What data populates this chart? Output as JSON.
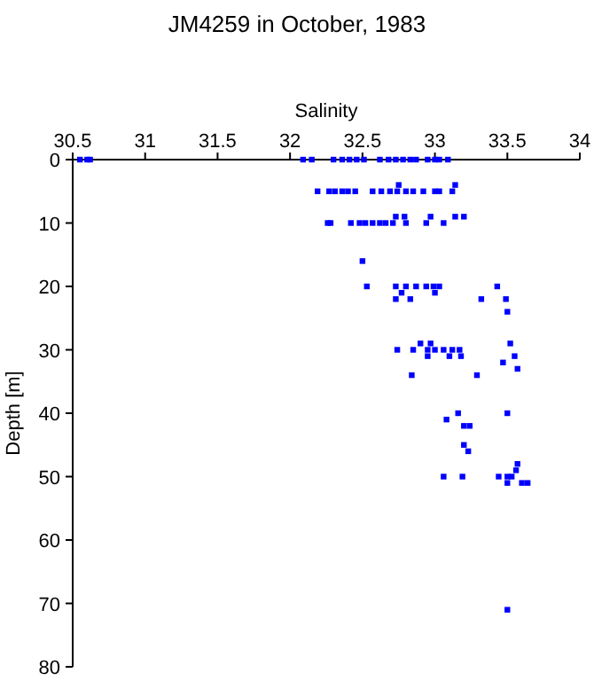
{
  "chart_data": {
    "type": "scatter",
    "title": "JM4259 in October, 1983",
    "xlabel": "Salinity",
    "ylabel": "Depth [m]",
    "xlim": [
      30.5,
      34
    ],
    "xticks": [
      30.5,
      31,
      31.5,
      32,
      32.5,
      33,
      33.5,
      34
    ],
    "ylim": [
      80,
      0
    ],
    "yticks": [
      0,
      10,
      20,
      30,
      40,
      50,
      60,
      70,
      80
    ],
    "marker": "square",
    "series": [
      {
        "color": "#0000ff",
        "x": [
          30.55,
          30.6,
          30.62,
          32.09,
          32.15,
          32.3,
          32.36,
          32.41,
          32.46,
          32.51,
          32.62,
          32.68,
          32.73,
          32.78,
          32.83,
          32.87,
          32.95,
          33.0,
          33.03,
          33.09,
          32.19,
          32.27,
          32.31,
          32.36,
          32.4,
          32.45,
          32.57,
          32.63,
          32.69,
          32.74,
          32.8,
          32.85,
          32.92,
          33.0,
          33.03,
          33.12,
          32.75,
          33.14,
          32.73,
          32.79,
          32.97,
          33.14,
          33.2,
          32.26,
          32.28,
          32.42,
          32.48,
          32.52,
          32.57,
          32.62,
          32.66,
          32.71,
          32.8,
          32.94,
          33.06,
          32.5,
          32.53,
          32.73,
          32.8,
          32.87,
          32.94,
          32.99,
          33.03,
          33.43,
          32.77,
          33.0,
          32.73,
          32.83,
          33.32,
          33.49,
          33.5,
          32.9,
          32.97,
          33.52,
          32.74,
          32.85,
          32.95,
          33.0,
          33.06,
          33.12,
          33.17,
          32.95,
          33.1,
          33.18,
          33.55,
          33.47,
          33.57,
          32.84,
          33.29,
          33.16,
          33.5,
          33.08,
          33.2,
          33.24,
          33.2,
          33.23,
          33.57,
          33.56,
          33.06,
          33.19,
          33.44,
          33.5,
          33.53,
          33.5,
          33.6,
          33.64,
          33.5
        ],
        "values": [
          0,
          0,
          0,
          0,
          0,
          0,
          0,
          0,
          0,
          0,
          0,
          0,
          0,
          0,
          0,
          0,
          0,
          0,
          0,
          0,
          5,
          5,
          5,
          5,
          5,
          5,
          5,
          5,
          5,
          5,
          5,
          5,
          5,
          5,
          5,
          5,
          4,
          4,
          9,
          9,
          9,
          9,
          9,
          10,
          10,
          10,
          10,
          10,
          10,
          10,
          10,
          10,
          10,
          10,
          10,
          16,
          20,
          20,
          20,
          20,
          20,
          20,
          20,
          20,
          21,
          21,
          22,
          22,
          22,
          22,
          24,
          29,
          29,
          29,
          30,
          30,
          30,
          30,
          30,
          30,
          30,
          31,
          31,
          31,
          31,
          32,
          33,
          34,
          34,
          40,
          40,
          41,
          42,
          42,
          45,
          46,
          48,
          49,
          50,
          50,
          50,
          50,
          50,
          51,
          51,
          51,
          71
        ]
      }
    ]
  }
}
